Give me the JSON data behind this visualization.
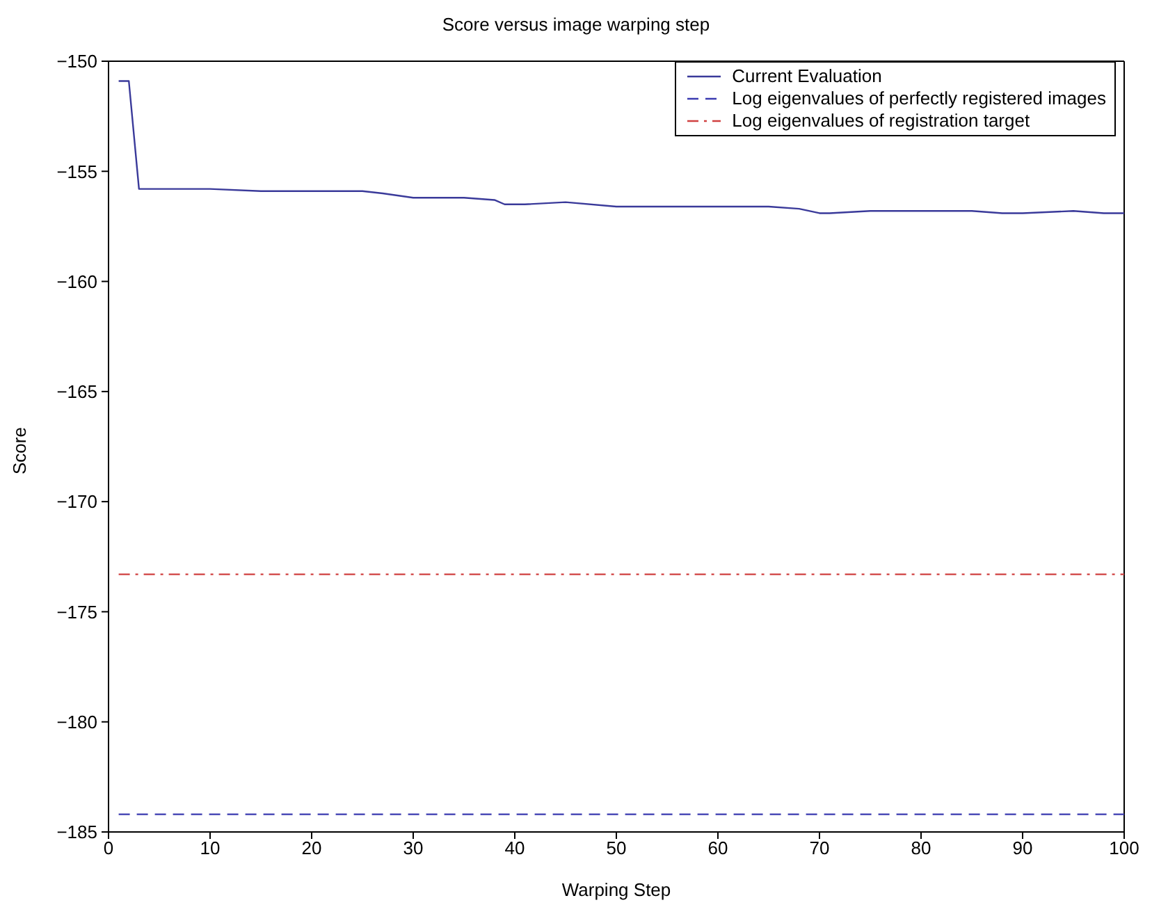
{
  "chart_data": {
    "type": "line",
    "title": "Score versus image warping step",
    "xlabel": "Warping Step",
    "ylabel": "Score",
    "xlim": [
      0,
      100
    ],
    "xticks": [
      0,
      10,
      20,
      30,
      40,
      50,
      60,
      70,
      80,
      90,
      100
    ],
    "ylim": [
      -185,
      -150
    ],
    "yticks": [
      -185,
      -180,
      -175,
      -170,
      -165,
      -160,
      -155,
      -150
    ],
    "grid": false,
    "legend": "top right",
    "marker": "none",
    "series": [
      {
        "name": "Current Evaluation",
        "color": "#3a3a9a",
        "line_style": "solid",
        "x": [
          1,
          2,
          3,
          10,
          15,
          20,
          25,
          27,
          30,
          35,
          38,
          39,
          41,
          45,
          50,
          55,
          60,
          65,
          68,
          70,
          71,
          75,
          80,
          85,
          88,
          90,
          95,
          98,
          100
        ],
        "values": [
          -150.9,
          -150.9,
          -155.8,
          -155.8,
          -155.9,
          -155.9,
          -155.9,
          -156.0,
          -156.2,
          -156.2,
          -156.3,
          -156.5,
          -156.5,
          -156.4,
          -156.6,
          -156.6,
          -156.6,
          -156.6,
          -156.7,
          -156.9,
          -156.9,
          -156.8,
          -156.8,
          -156.8,
          -156.9,
          -156.9,
          -156.8,
          -156.9,
          -156.9
        ]
      },
      {
        "name": "Log eigenvalues of perfectly registered images",
        "color": "#3a3ab0",
        "line_style": "dashed",
        "x": [
          1,
          100
        ],
        "values": [
          -184.2,
          -184.2
        ]
      },
      {
        "name": "Log eigenvalues of registration target",
        "color": "#d04040",
        "line_style": "dashdot",
        "x": [
          1,
          100
        ],
        "values": [
          -173.3,
          -173.3
        ]
      }
    ]
  }
}
